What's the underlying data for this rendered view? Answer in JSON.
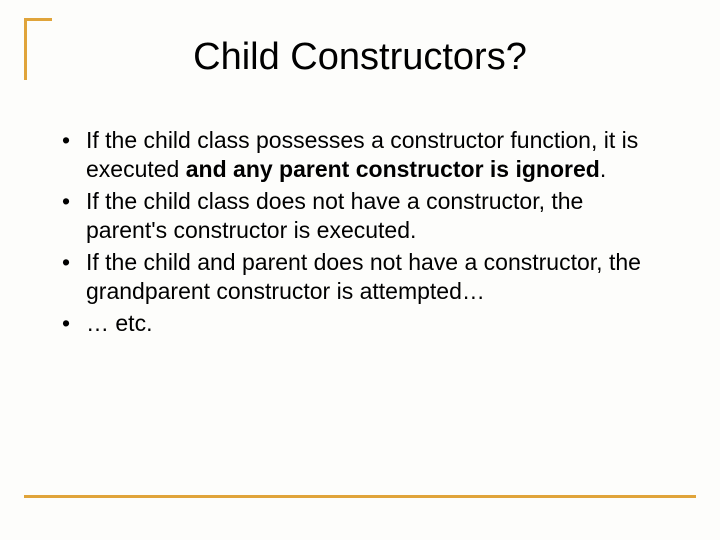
{
  "slide": {
    "title": "Child Constructors?",
    "accent_color": "#e0a43a",
    "background_color": "#fdfdfb",
    "title_fontsize": 38,
    "body_fontsize": 23,
    "bullets": [
      {
        "pre": "If the child class possesses a constructor function, it is executed ",
        "bold": "and any parent constructor is ignored",
        "post": "."
      },
      {
        "pre": "If the child class does not have a constructor, the parent's constructor is executed.",
        "bold": "",
        "post": ""
      },
      {
        "pre": "If the child and parent does not have a constructor, the grandparent constructor is attempted…",
        "bold": "",
        "post": ""
      },
      {
        "pre": "… etc.",
        "bold": "",
        "post": ""
      }
    ]
  }
}
